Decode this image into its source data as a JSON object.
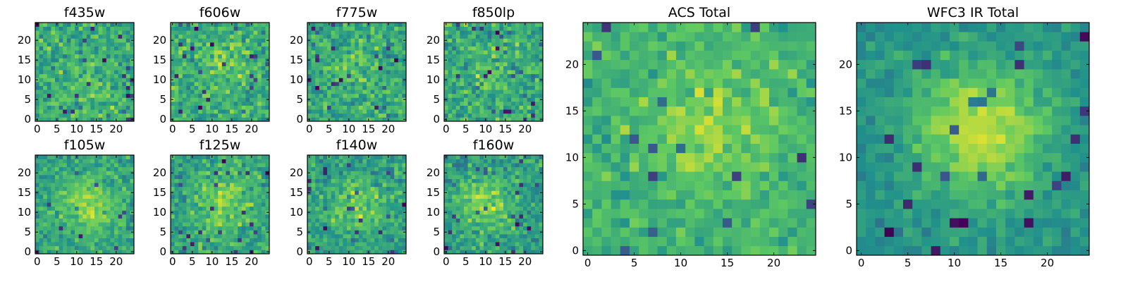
{
  "chart_data": {
    "type": "heatmap",
    "colormap": [
      "#440154",
      "#3b528b",
      "#21918c",
      "#5ec962",
      "#fde725"
    ],
    "grid_size": 25,
    "panels": [
      {
        "title": "f435w",
        "xticks": [
          "0",
          "5",
          "10",
          "15",
          "20"
        ],
        "yticks": [
          "0",
          "5",
          "10",
          "15",
          "20"
        ],
        "xlim": [
          0,
          24
        ],
        "ylim": [
          0,
          24
        ],
        "center": [
          13,
          9
        ],
        "peak": 0.1,
        "width": 4,
        "noise": 0.28,
        "base": 0.62
      },
      {
        "title": "f606w",
        "xticks": [
          "0",
          "5",
          "10",
          "15",
          "20"
        ],
        "yticks": [
          "0",
          "5",
          "10",
          "15",
          "20"
        ],
        "xlim": [
          0,
          24
        ],
        "ylim": [
          0,
          24
        ],
        "center": [
          13,
          14
        ],
        "peak": 0.12,
        "width": 4,
        "noise": 0.28,
        "base": 0.62
      },
      {
        "title": "f775w",
        "xticks": [
          "0",
          "5",
          "10",
          "15",
          "20"
        ],
        "yticks": [
          "0",
          "5",
          "10",
          "15",
          "20"
        ],
        "xlim": [
          0,
          24
        ],
        "ylim": [
          0,
          24
        ],
        "center": [
          12,
          13
        ],
        "peak": 0.1,
        "width": 4,
        "noise": 0.26,
        "base": 0.6
      },
      {
        "title": "f850lp",
        "xticks": [
          "0",
          "5",
          "10",
          "15",
          "20"
        ],
        "yticks": [
          "0",
          "5",
          "10",
          "15",
          "20"
        ],
        "xlim": [
          0,
          24
        ],
        "ylim": [
          0,
          24
        ],
        "center": [
          12,
          12
        ],
        "peak": 0.1,
        "width": 4,
        "noise": 0.28,
        "base": 0.6
      },
      {
        "title": "f105w",
        "xticks": [
          "0",
          "5",
          "10",
          "15",
          "20"
        ],
        "yticks": [
          "0",
          "5",
          "10",
          "15",
          "20"
        ],
        "xlim": [
          0,
          24
        ],
        "ylim": [
          0,
          24
        ],
        "center": [
          13,
          12
        ],
        "peak": 0.25,
        "width": 5,
        "noise": 0.22,
        "base": 0.58
      },
      {
        "title": "f125w",
        "xticks": [
          "0",
          "5",
          "10",
          "15",
          "20"
        ],
        "yticks": [
          "0",
          "5",
          "10",
          "15",
          "20"
        ],
        "xlim": [
          0,
          24
        ],
        "ylim": [
          0,
          24
        ],
        "center": [
          13,
          12
        ],
        "peak": 0.22,
        "width": 5,
        "noise": 0.24,
        "base": 0.58
      },
      {
        "title": "f140w",
        "xticks": [
          "0",
          "5",
          "10",
          "15",
          "20"
        ],
        "yticks": [
          "0",
          "5",
          "10",
          "15",
          "20"
        ],
        "xlim": [
          0,
          24
        ],
        "ylim": [
          0,
          24
        ],
        "center": [
          12,
          12
        ],
        "peak": 0.2,
        "width": 5,
        "noise": 0.24,
        "base": 0.56
      },
      {
        "title": "f160w",
        "xticks": [
          "0",
          "5",
          "10",
          "15",
          "20"
        ],
        "yticks": [
          "0",
          "5",
          "10",
          "15",
          "20"
        ],
        "xlim": [
          0,
          24
        ],
        "ylim": [
          0,
          24
        ],
        "center": [
          10,
          12
        ],
        "peak": 0.25,
        "width": 5,
        "noise": 0.24,
        "base": 0.55
      },
      {
        "title": "ACS Total",
        "xticks": [
          "0",
          "5",
          "10",
          "15",
          "20"
        ],
        "yticks": [
          "0",
          "5",
          "10",
          "15",
          "20"
        ],
        "xlim": [
          0,
          24
        ],
        "ylim": [
          0,
          24
        ],
        "center": [
          13,
          13
        ],
        "peak": 0.18,
        "width": 5,
        "noise": 0.2,
        "base": 0.64
      },
      {
        "title": "WFC3 IR Total",
        "xticks": [
          "0",
          "5",
          "10",
          "15",
          "20"
        ],
        "yticks": [
          "0",
          "5",
          "10",
          "15",
          "20"
        ],
        "xlim": [
          0,
          24
        ],
        "ylim": [
          0,
          24
        ],
        "center": [
          13,
          13
        ],
        "peak": 0.42,
        "width": 5,
        "noise": 0.14,
        "base": 0.5
      }
    ]
  }
}
